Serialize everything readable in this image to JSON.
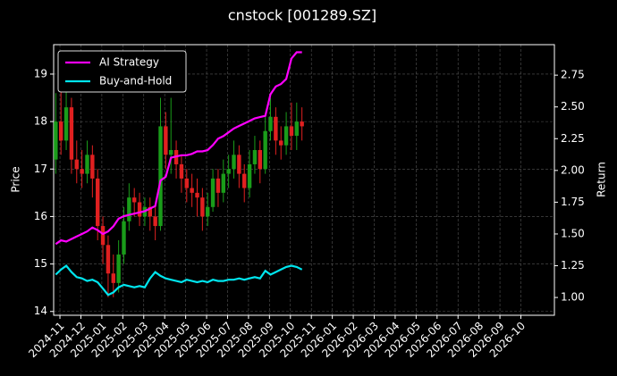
{
  "chart_data": {
    "type": "candlestick",
    "title": "cnstock [001289.SZ]",
    "ylabel": "Price",
    "y2label": "Return",
    "grid": true,
    "legend": "upper left",
    "up_color": "#1a9c1a",
    "down_color": "#e02020",
    "xlim": [
      -0.3,
      23.6
    ],
    "xticks": [
      {
        "value": 0,
        "label": "2024-11"
      },
      {
        "value": 1,
        "label": "2024-12"
      },
      {
        "value": 2,
        "label": "2025-01"
      },
      {
        "value": 3,
        "label": "2025-02"
      },
      {
        "value": 4,
        "label": "2025-03"
      },
      {
        "value": 5,
        "label": "2025-04"
      },
      {
        "value": 6,
        "label": "2025-05"
      },
      {
        "value": 7,
        "label": "2025-06"
      },
      {
        "value": 8,
        "label": "2025-07"
      },
      {
        "value": 9,
        "label": "2025-08"
      },
      {
        "value": 10,
        "label": "2025-09"
      },
      {
        "value": 11,
        "label": "2025-10"
      },
      {
        "value": 12,
        "label": "2025-11"
      },
      {
        "value": 13,
        "label": "2026-01"
      },
      {
        "value": 14,
        "label": "2026-02"
      },
      {
        "value": 15,
        "label": "2026-03"
      },
      {
        "value": 16,
        "label": "2026-04"
      },
      {
        "value": 17,
        "label": "2026-05"
      },
      {
        "value": 18,
        "label": "2026-06"
      },
      {
        "value": 19,
        "label": "2026-07"
      },
      {
        "value": 20,
        "label": "2026-08"
      },
      {
        "value": 21,
        "label": "2026-09"
      },
      {
        "value": 22,
        "label": "2026-10"
      }
    ],
    "ylim": [
      13.92,
      19.62
    ],
    "yticks": [
      14,
      15,
      16,
      17,
      18,
      19
    ],
    "y2lim": [
      0.86,
      2.99
    ],
    "y2ticks": [
      {
        "value": 1,
        "label": "1.00"
      },
      {
        "value": 1.25,
        "label": "1.25"
      },
      {
        "value": 1.5,
        "label": "1.50"
      },
      {
        "value": 1.75,
        "label": "1.75"
      },
      {
        "value": 2,
        "label": "2.00"
      },
      {
        "value": 2.25,
        "label": "2.25"
      },
      {
        "value": 2.5,
        "label": "2.50"
      },
      {
        "value": 2.75,
        "label": "2.75"
      }
    ],
    "x": [
      -0.2,
      0.05,
      0.3,
      0.55,
      0.8,
      1.05,
      1.3,
      1.55,
      1.8,
      2.05,
      2.3,
      2.55,
      2.8,
      3.05,
      3.3,
      3.55,
      3.8,
      4.05,
      4.3,
      4.55,
      4.8,
      5.05,
      5.3,
      5.55,
      5.8,
      6.05,
      6.3,
      6.55,
      6.8,
      7.05,
      7.3,
      7.55,
      7.8,
      8.05,
      8.3,
      8.55,
      8.8,
      9.05,
      9.3,
      9.55,
      9.8,
      10.05,
      10.3,
      10.55,
      10.8,
      11.05,
      11.3,
      11.55
    ],
    "open": [
      17.2,
      18.0,
      17.6,
      18.3,
      17.2,
      17.0,
      16.9,
      17.3,
      16.8,
      15.8,
      15.4,
      14.8,
      14.6,
      15.2,
      15.9,
      16.4,
      16.3,
      16.0,
      16.2,
      16.0,
      15.8,
      17.9,
      17.3,
      17.4,
      17.1,
      16.8,
      16.6,
      16.5,
      16.4,
      16.0,
      16.2,
      16.8,
      16.5,
      16.9,
      17.0,
      17.3,
      16.9,
      16.6,
      17.1,
      17.4,
      17.0,
      17.8,
      18.1,
      17.6,
      17.5,
      17.9,
      17.7,
      18.0
    ],
    "high": [
      18.6,
      18.7,
      18.8,
      18.5,
      17.6,
      17.4,
      17.6,
      17.5,
      17.0,
      16.0,
      15.6,
      15.2,
      15.5,
      16.2,
      16.7,
      16.6,
      16.5,
      16.4,
      16.4,
      16.2,
      18.5,
      18.2,
      18.5,
      17.6,
      17.3,
      17.0,
      16.9,
      16.8,
      16.6,
      16.5,
      17.0,
      17.0,
      17.2,
      17.3,
      17.6,
      17.5,
      17.1,
      17.4,
      17.7,
      17.6,
      18.1,
      18.5,
      18.3,
      17.9,
      18.2,
      18.4,
      18.4,
      18.3
    ],
    "low": [
      16.9,
      17.3,
      17.4,
      16.9,
      16.7,
      16.6,
      16.7,
      16.4,
      15.5,
      15.0,
      14.3,
      14.3,
      14.4,
      15.0,
      15.7,
      16.0,
      15.8,
      15.8,
      15.7,
      15.5,
      15.7,
      17.0,
      16.9,
      16.8,
      16.5,
      16.3,
      16.2,
      16.0,
      15.7,
      15.8,
      16.1,
      16.2,
      16.3,
      16.6,
      16.8,
      16.6,
      16.3,
      16.4,
      16.9,
      16.7,
      16.9,
      17.6,
      17.3,
      17.2,
      17.3,
      17.4,
      17.4,
      17.6
    ],
    "close": [
      18.0,
      17.6,
      18.3,
      17.2,
      17.0,
      16.9,
      17.3,
      16.8,
      15.8,
      15.4,
      14.8,
      14.6,
      15.2,
      15.9,
      16.4,
      16.3,
      16.0,
      16.2,
      16.0,
      15.8,
      17.9,
      17.3,
      17.4,
      17.1,
      16.8,
      16.6,
      16.5,
      16.4,
      16.0,
      16.2,
      16.8,
      16.5,
      16.9,
      17.0,
      17.3,
      16.9,
      16.6,
      17.1,
      17.4,
      17.0,
      17.8,
      18.1,
      17.6,
      17.5,
      17.9,
      17.7,
      18.0,
      17.9
    ],
    "series": [
      {
        "name": "AI Strategy",
        "color": "#ff00ff",
        "axis": "y2",
        "values": [
          1.42,
          1.45,
          1.44,
          1.46,
          1.48,
          1.5,
          1.52,
          1.55,
          1.53,
          1.5,
          1.52,
          1.56,
          1.62,
          1.64,
          1.65,
          1.66,
          1.67,
          1.68,
          1.7,
          1.72,
          1.92,
          1.95,
          2.1,
          2.11,
          2.12,
          2.12,
          2.13,
          2.15,
          2.15,
          2.16,
          2.2,
          2.25,
          2.27,
          2.3,
          2.33,
          2.35,
          2.37,
          2.39,
          2.41,
          2.42,
          2.43,
          2.6,
          2.66,
          2.68,
          2.72,
          2.88,
          2.93,
          2.93
        ]
      },
      {
        "name": "Buy-and-Hold",
        "color": "#00e5ee",
        "axis": "y2",
        "values": [
          1.18,
          1.22,
          1.25,
          1.2,
          1.16,
          1.15,
          1.13,
          1.14,
          1.12,
          1.07,
          1.02,
          1.04,
          1.08,
          1.1,
          1.09,
          1.08,
          1.09,
          1.08,
          1.15,
          1.2,
          1.17,
          1.15,
          1.14,
          1.13,
          1.12,
          1.14,
          1.13,
          1.12,
          1.13,
          1.12,
          1.14,
          1.13,
          1.13,
          1.14,
          1.14,
          1.15,
          1.14,
          1.15,
          1.16,
          1.15,
          1.21,
          1.18,
          1.2,
          1.22,
          1.24,
          1.25,
          1.24,
          1.22
        ]
      }
    ]
  }
}
